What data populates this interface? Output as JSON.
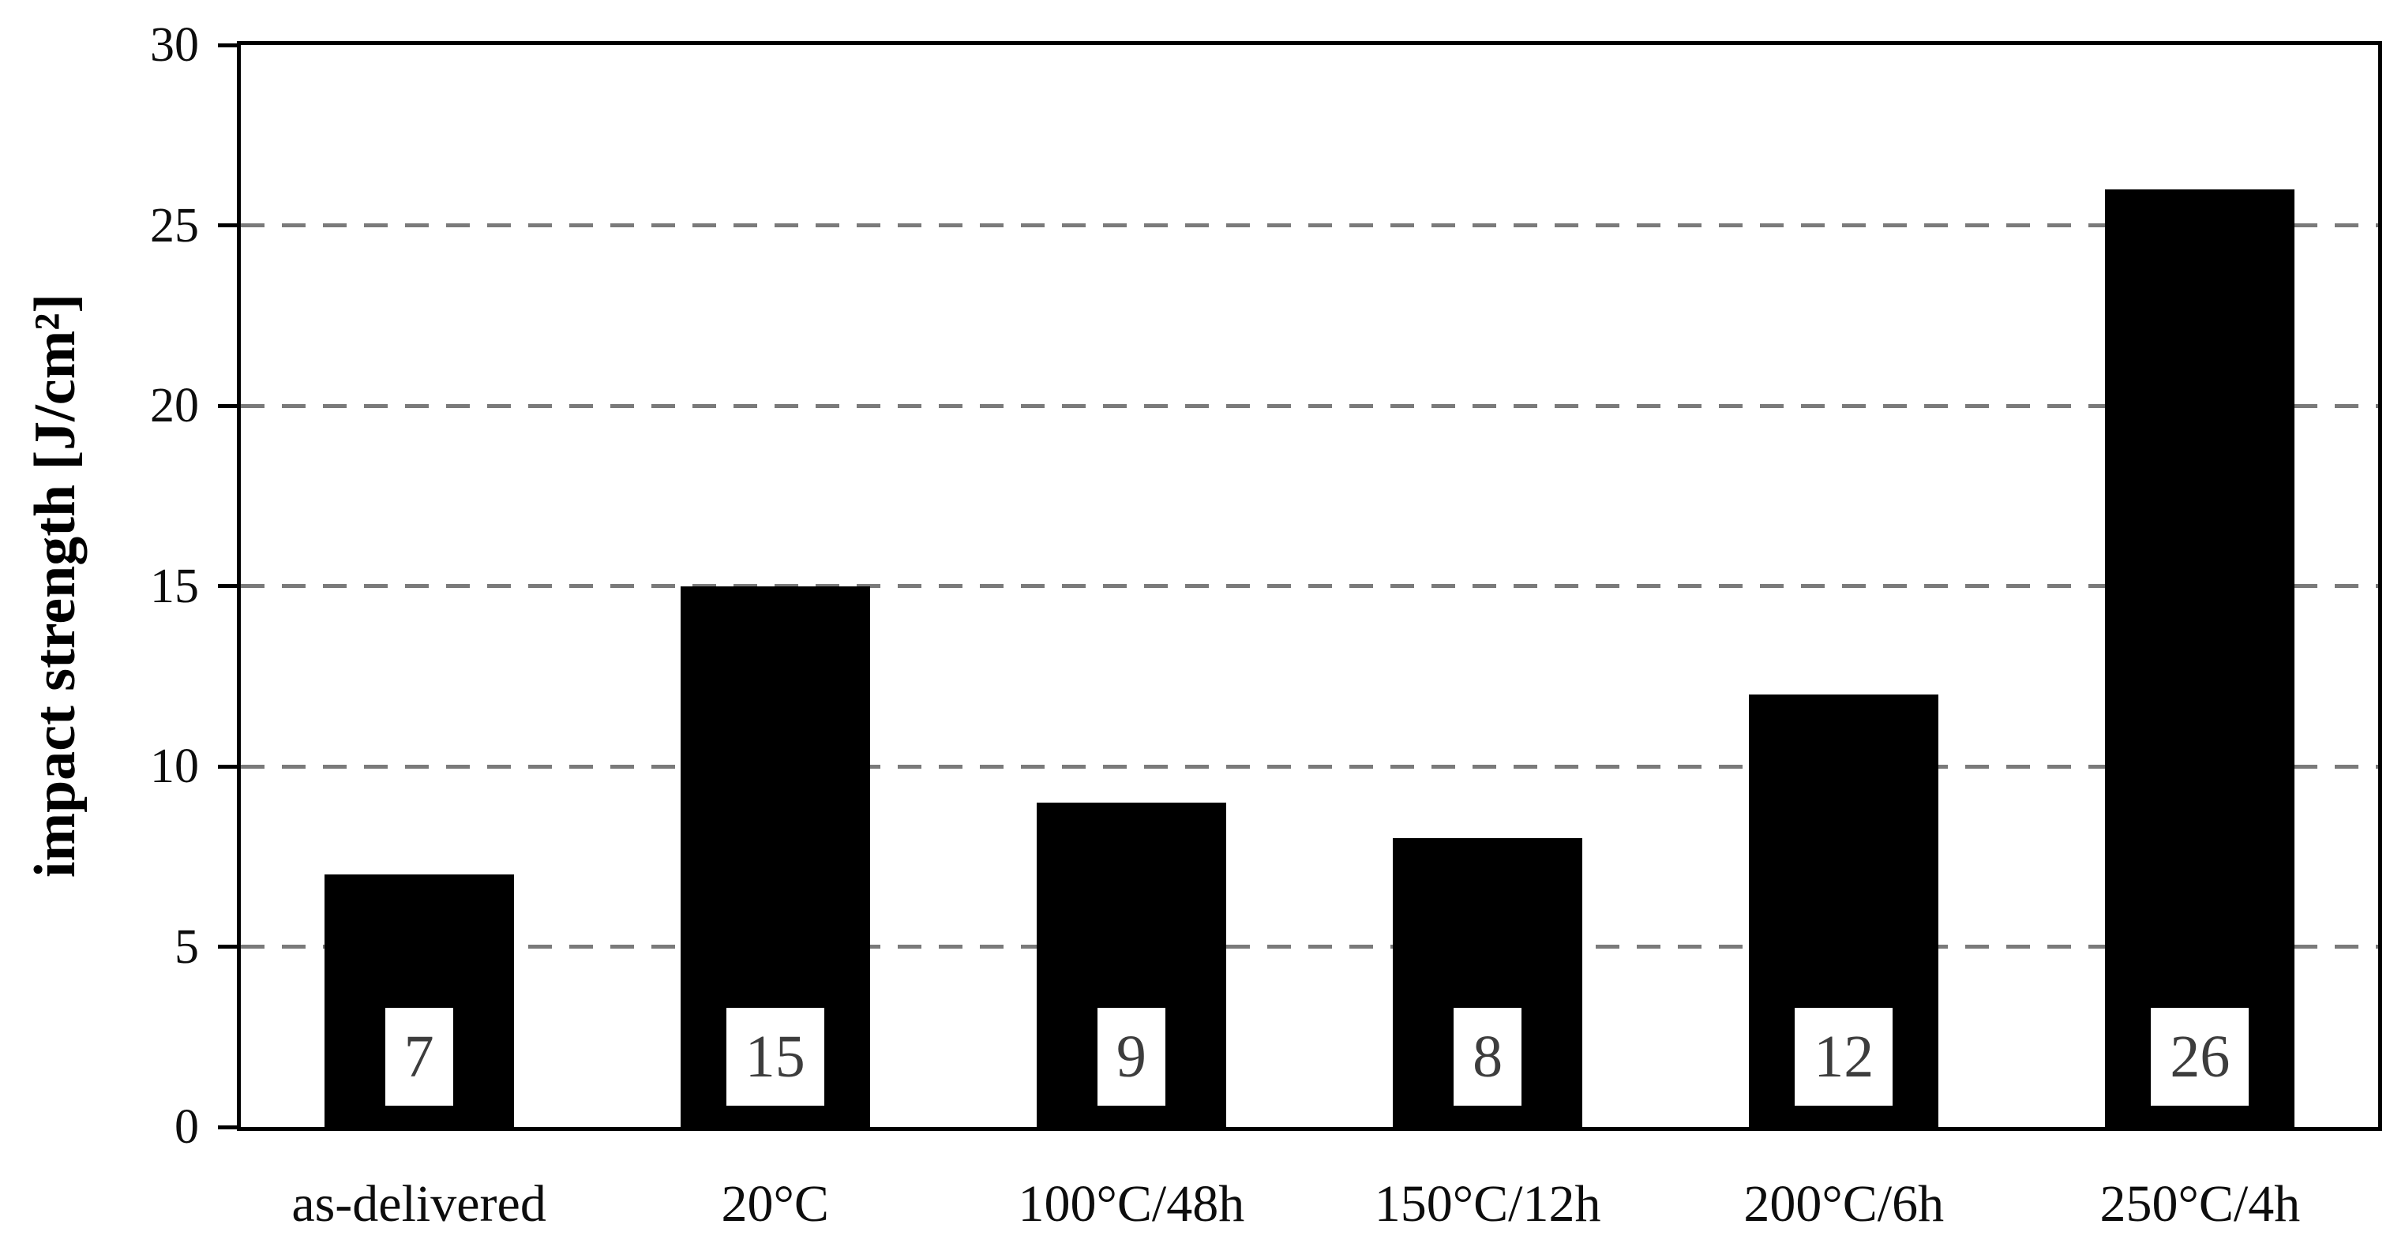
{
  "chart_data": {
    "type": "bar",
    "categories": [
      "as-delivered",
      "20°C",
      "100°C/48h",
      "150°C/12h",
      "200°C/6h",
      "250°C/4h"
    ],
    "values": [
      7,
      15,
      9,
      8,
      12,
      26
    ],
    "data_labels": [
      "7",
      "15",
      "9",
      "8",
      "12",
      "26"
    ],
    "title": "",
    "xlabel": "",
    "ylabel": "impact strength [J/cm²]",
    "ylim": [
      0,
      30
    ],
    "yticks": [
      0,
      5,
      10,
      15,
      20,
      25,
      30
    ],
    "grid": "horizontal-dashed",
    "legend": "none",
    "colors": {
      "bar": "#000000",
      "gridline": "#7a7a7a",
      "axis_frame": "#000000",
      "data_label_text": "#3d3d3d",
      "data_label_bg": "#ffffff",
      "background": "#ffffff"
    }
  }
}
